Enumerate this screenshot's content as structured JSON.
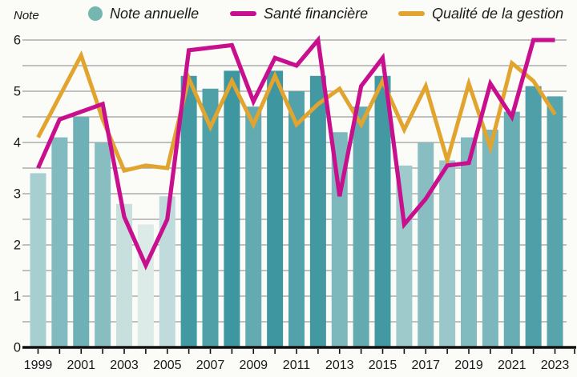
{
  "figure": {
    "axis_title": "Note",
    "background": "#fbfbf8"
  },
  "legend": {
    "items": [
      {
        "label": "Note annuelle",
        "swatch": "circle",
        "color": "#74b7b0"
      },
      {
        "label": "Santé financière",
        "swatch": "line",
        "color": "#c8108e"
      },
      {
        "label": "Qualité de la gestion",
        "swatch": "line",
        "color": "#e1a42f"
      }
    ]
  },
  "axis": {
    "y_tick_labels": [
      "6",
      "5",
      "4",
      "3",
      "2",
      "1",
      "0"
    ],
    "x_tick_labels": [
      "1999",
      "2001",
      "2003",
      "2005",
      "2007",
      "2009",
      "2011",
      "2013",
      "2015",
      "2017",
      "2019",
      "2021",
      "2023"
    ],
    "ylim": [
      0,
      6
    ],
    "grid_step": 0.5,
    "grid_color": "#9c9c9c",
    "baseline_color": "#111111"
  },
  "chart_data": {
    "type": "bar+line",
    "x": [
      1999,
      2000,
      2001,
      2002,
      2003,
      2004,
      2005,
      2006,
      2007,
      2008,
      2009,
      2010,
      2011,
      2012,
      2013,
      2014,
      2015,
      2016,
      2017,
      2018,
      2019,
      2020,
      2021,
      2022,
      2023
    ],
    "ylim": [
      0,
      6
    ],
    "grid": true,
    "legend_position": "top",
    "series": [
      {
        "name": "Note annuelle",
        "type": "bar",
        "color_low": "#dcebe8",
        "color_high": "#3e96a0",
        "values": [
          3.4,
          4.1,
          4.5,
          4.0,
          2.8,
          2.4,
          2.95,
          5.3,
          5.05,
          5.4,
          4.7,
          5.4,
          5.0,
          5.3,
          4.2,
          4.7,
          5.3,
          3.55,
          4.0,
          3.65,
          4.1,
          4.25,
          4.6,
          5.1,
          4.9
        ],
        "bar_colors": [
          "#a7cfd0",
          "#82bbbf",
          "#6db0b6",
          "#88bec2",
          "#c7e0de",
          "#dcebe8",
          "#bfdbdb",
          "#4399a2",
          "#50a0a8",
          "#3e96a0",
          "#63aab1",
          "#3e96a0",
          "#53a1aa",
          "#4399a2",
          "#7db8bd",
          "#63aab1",
          "#4399a2",
          "#9fcacc",
          "#88bec2",
          "#9ac8ca",
          "#82bbbf",
          "#7bb7bc",
          "#68adb3",
          "#4e9fa7",
          "#58a4ac"
        ]
      },
      {
        "name": "Santé financière",
        "type": "line",
        "color": "#c8108e",
        "values": [
          3.5,
          4.45,
          4.6,
          4.75,
          2.55,
          1.6,
          2.5,
          5.8,
          5.85,
          5.9,
          4.8,
          5.65,
          5.5,
          6.0,
          2.95,
          5.1,
          5.65,
          2.4,
          2.9,
          3.55,
          3.6,
          5.15,
          4.5,
          6.0,
          6.0
        ]
      },
      {
        "name": "Qualité de la gestion",
        "type": "line",
        "color": "#e1a42f",
        "values": [
          4.1,
          4.9,
          5.7,
          4.45,
          3.45,
          3.55,
          3.5,
          5.25,
          4.3,
          5.2,
          4.35,
          5.3,
          4.35,
          4.75,
          5.05,
          4.35,
          5.2,
          4.25,
          5.1,
          3.65,
          5.15,
          3.9,
          5.55,
          5.2,
          4.55
        ]
      }
    ]
  }
}
